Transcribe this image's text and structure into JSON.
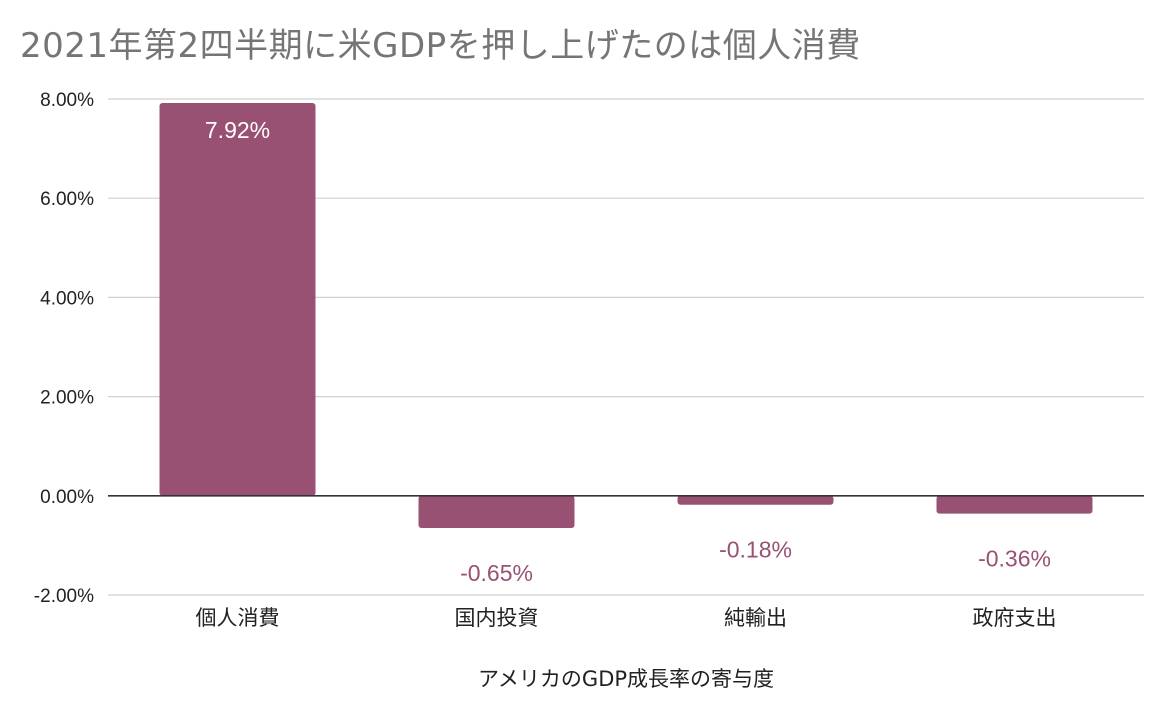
{
  "chart_data": {
    "type": "bar",
    "title": "2021年第2四半期に米GDPを押し上げたのは個人消費",
    "xlabel": "アメリカのGDP成長率の寄与度",
    "ylabel": "",
    "categories": [
      "個人消費",
      "国内投資",
      "純輸出",
      "政府支出"
    ],
    "values": [
      7.92,
      -0.65,
      -0.18,
      -0.36
    ],
    "data_labels": [
      "7.92%",
      "-0.65%",
      "-0.18%",
      "-0.36%"
    ],
    "ylim": [
      -2,
      8
    ],
    "yticks": [
      8,
      6,
      4,
      2,
      0,
      -2
    ],
    "ytick_labels": [
      "8.00%",
      "6.00%",
      "4.00%",
      "2.00%",
      "0.00%",
      "-2.00%"
    ],
    "grid": true,
    "legend": "none",
    "bar_color": "#985173",
    "inside_label_color": "#ffffff"
  }
}
